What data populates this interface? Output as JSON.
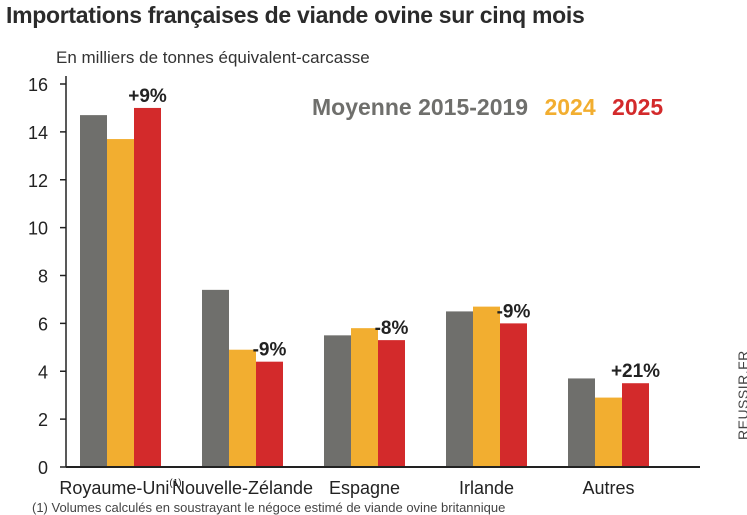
{
  "chart_data": {
    "type": "bar",
    "title": "Importations françaises de viande ovine sur cinq mois",
    "ylabel": "En milliers de tonnes équivalent-carcasse",
    "xlabel": "",
    "categories": [
      "Royaume-Uni",
      "Nouvelle-Zélande",
      "Espagne",
      "Irlande",
      "Autres"
    ],
    "category_footnote_marker": "(1)",
    "ylim": [
      0,
      16
    ],
    "yticks": [
      0,
      2,
      4,
      6,
      8,
      10,
      12,
      14,
      16
    ],
    "series": [
      {
        "name": "Moyenne 2015-2019",
        "color": "#6f6f6c",
        "values": [
          14.7,
          7.4,
          5.5,
          6.5,
          3.7
        ]
      },
      {
        "name": "2024",
        "color": "#f2ae30",
        "values": [
          13.7,
          4.9,
          5.8,
          6.7,
          2.9
        ]
      },
      {
        "name": "2025",
        "color": "#d32a2b",
        "values": [
          15.0,
          4.4,
          5.3,
          6.0,
          3.5
        ]
      }
    ],
    "annotations": [
      "+9%",
      "-9%",
      "-8%",
      "-9%",
      "+21%"
    ],
    "legend_position": "top-right"
  },
  "source": "REUSSIR.FR",
  "footnote": "(1) Volumes calculés en soustrayant le négoce estimé de viande ovine britannique"
}
